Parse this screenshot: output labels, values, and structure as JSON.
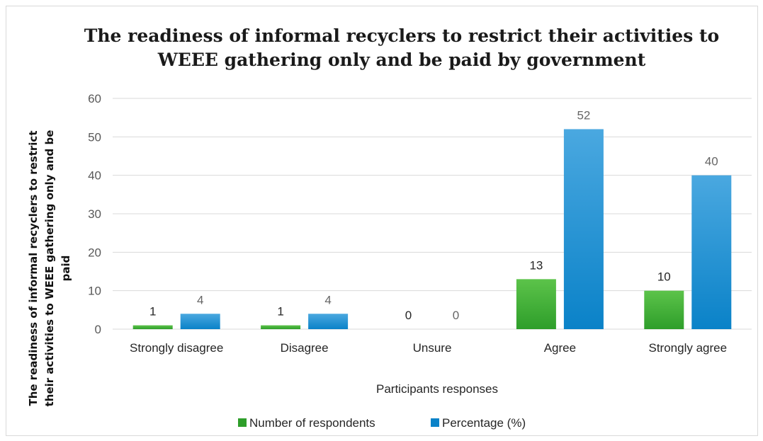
{
  "chart_data": {
    "type": "bar",
    "title_line1": "The readiness of informal recyclers to restrict their activities to",
    "title_line2": "WEEE gathering only and be paid by government",
    "ylabel_line1": "The readiness of informal recyclers  to restrict",
    "ylabel_line2": "their activities to WEEE gathering  only  and be",
    "ylabel_line3": "paid",
    "xlabel": "Participants responses",
    "categories": [
      "Strongly disagree",
      "Disagree",
      "Unsure",
      "Agree",
      "Strongly agree"
    ],
    "series": [
      {
        "name": "Number of respondents",
        "values": [
          1,
          1,
          0,
          13,
          10
        ],
        "color": "#2e9e2a",
        "color_light": "#5cc34a"
      },
      {
        "name": "Percentage (%)",
        "values": [
          4,
          4,
          0,
          52,
          40
        ],
        "color": "#0a82c8",
        "color_light": "#4aa8e0"
      }
    ],
    "ylim": [
      0,
      60
    ],
    "yticks": [
      0,
      10,
      20,
      30,
      40,
      50,
      60
    ],
    "grid": true,
    "legend_position": "bottom"
  }
}
